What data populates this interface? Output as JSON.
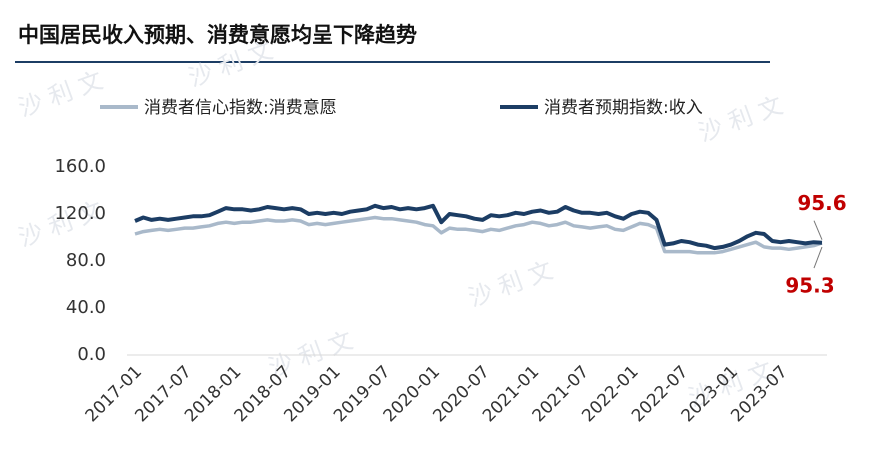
{
  "chart_data": {
    "type": "line",
    "title": "中国居民收入预期、消费意愿均呈下降趋势",
    "watermark": "沙 利 文",
    "categories": [
      "2017-01",
      null,
      null,
      null,
      null,
      null,
      "2017-07",
      null,
      null,
      null,
      null,
      null,
      "2018-01",
      null,
      null,
      null,
      null,
      null,
      "2018-07",
      null,
      null,
      null,
      null,
      null,
      "2019-01",
      null,
      null,
      null,
      null,
      null,
      "2019-07",
      null,
      null,
      null,
      null,
      null,
      "2020-01",
      null,
      null,
      null,
      null,
      null,
      "2020-07",
      null,
      null,
      null,
      null,
      null,
      "2021-01",
      null,
      null,
      null,
      null,
      null,
      "2021-07",
      null,
      null,
      null,
      null,
      null,
      "2022-01",
      null,
      null,
      null,
      null,
      null,
      "2022-07",
      null,
      null,
      null,
      null,
      null,
      "2023-01",
      null,
      null,
      null,
      null,
      null,
      "2023-07",
      null,
      null,
      null,
      null,
      null
    ],
    "series": [
      {
        "name": "消费者信心指数:消费意愿",
        "color": "#a9b9ca",
        "values": [
          103,
          105,
          106,
          107,
          106,
          107,
          108,
          108,
          109,
          110,
          112,
          113,
          112,
          113,
          113,
          114,
          115,
          114,
          114,
          115,
          114,
          111,
          112,
          111,
          112,
          113,
          114,
          115,
          116,
          117,
          116,
          116,
          115,
          114,
          113,
          111,
          110,
          104,
          108,
          107,
          107,
          106,
          105,
          107,
          106,
          108,
          110,
          111,
          113,
          112,
          110,
          111,
          113,
          110,
          109,
          108,
          109,
          110,
          107,
          106,
          109,
          112,
          111,
          108,
          88,
          88,
          88,
          88,
          87,
          87,
          87,
          88,
          90,
          92,
          94,
          96,
          92,
          91,
          91,
          90,
          91,
          92,
          93,
          95.3
        ]
      },
      {
        "name": "消费者预期指数:收入",
        "color": "#1c3d64",
        "values": [
          114,
          117,
          115,
          116,
          115,
          116,
          117,
          118,
          118,
          119,
          122,
          125,
          124,
          124,
          123,
          124,
          126,
          125,
          124,
          125,
          124,
          120,
          121,
          120,
          121,
          120,
          122,
          123,
          124,
          127,
          125,
          126,
          124,
          125,
          124,
          125,
          127,
          113,
          120,
          119,
          118,
          116,
          115,
          119,
          118,
          119,
          121,
          120,
          122,
          123,
          121,
          122,
          126,
          123,
          121,
          121,
          120,
          121,
          118,
          116,
          120,
          122,
          121,
          115,
          94,
          95,
          97,
          96,
          94,
          93,
          91,
          92,
          94,
          97,
          101,
          104,
          103,
          97,
          96,
          97,
          96,
          95,
          96,
          95.6
        ]
      }
    ],
    "ylim": [
      0,
      160
    ],
    "yticks": [
      {
        "value": 0,
        "label": "0.0"
      },
      {
        "value": 40,
        "label": "40.0"
      },
      {
        "value": 80,
        "label": "80.0"
      },
      {
        "value": 120,
        "label": "120.0"
      },
      {
        "value": 160,
        "label": "160.0"
      }
    ],
    "annotation_color": "#c00000"
  }
}
